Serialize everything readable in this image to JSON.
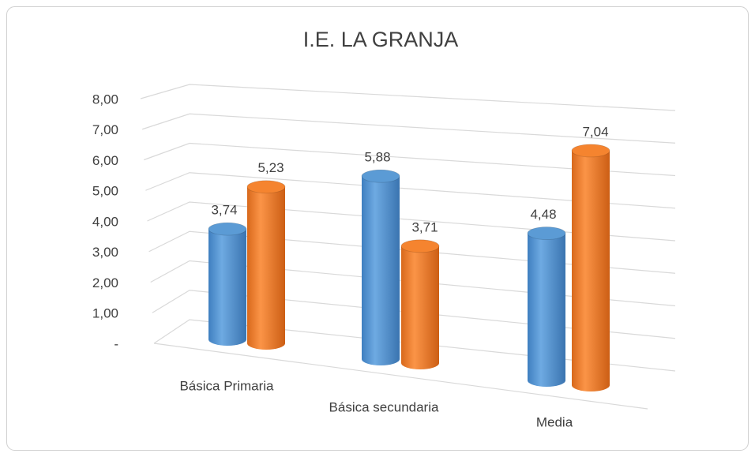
{
  "chart_data": {
    "type": "bar3d",
    "title": "I.E. LA GRANJA",
    "categories": [
      "Básica Primaria",
      "Básica secundaria",
      "Media"
    ],
    "series": [
      {
        "color": "#5b9bd5",
        "values": [
          3.74,
          5.88,
          4.48
        ],
        "value_labels": [
          "3,74",
          "5,88",
          "4,48"
        ]
      },
      {
        "color": "#f5842f",
        "values": [
          5.23,
          3.71,
          7.04
        ],
        "value_labels": [
          "5,23",
          "3,71",
          "7,04"
        ]
      }
    ],
    "ylim": [
      0,
      8
    ],
    "yticks": [
      {
        "value": 0,
        "label": "-"
      },
      {
        "value": 1,
        "label": "1,00"
      },
      {
        "value": 2,
        "label": "2,00"
      },
      {
        "value": 3,
        "label": "3,00"
      },
      {
        "value": 4,
        "label": "4,00"
      },
      {
        "value": 5,
        "label": "5,00"
      },
      {
        "value": 6,
        "label": "6,00"
      },
      {
        "value": 7,
        "label": "7,00"
      },
      {
        "value": 8,
        "label": "8,00"
      }
    ],
    "grid": true
  }
}
